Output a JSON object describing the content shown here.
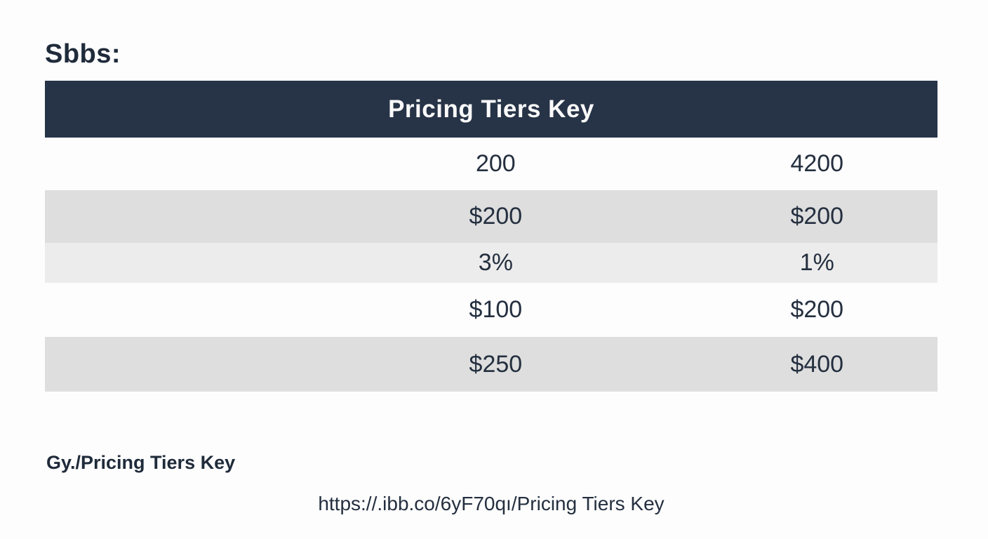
{
  "page": {
    "title": "Sbbs:",
    "caption": "Gy./Pricing Tiers Key",
    "url": "https://.ibb.co/6yF70qı/Pricing Tiers Key"
  },
  "chart_data": {
    "type": "table",
    "title": "Pricing Tiers Key",
    "layout": {
      "header_spans_all_columns": true,
      "label_column_empty": true,
      "striped_rows": [
        "white",
        "gray",
        "light-gray",
        "white",
        "gray"
      ]
    },
    "rows": [
      [
        "200",
        "4200"
      ],
      [
        "$200",
        "$200"
      ],
      [
        "3%",
        "1%"
      ],
      [
        "$100",
        "$200"
      ],
      [
        "$250",
        "$400"
      ]
    ]
  },
  "colors": {
    "page_bg": "#fdfdfd",
    "header_bg": "#273347",
    "header_text": "#fafafa",
    "row_gray": "#dedede",
    "row_light": "#ececec",
    "text": "#242f3f",
    "title_text": "#1f2b3a"
  }
}
